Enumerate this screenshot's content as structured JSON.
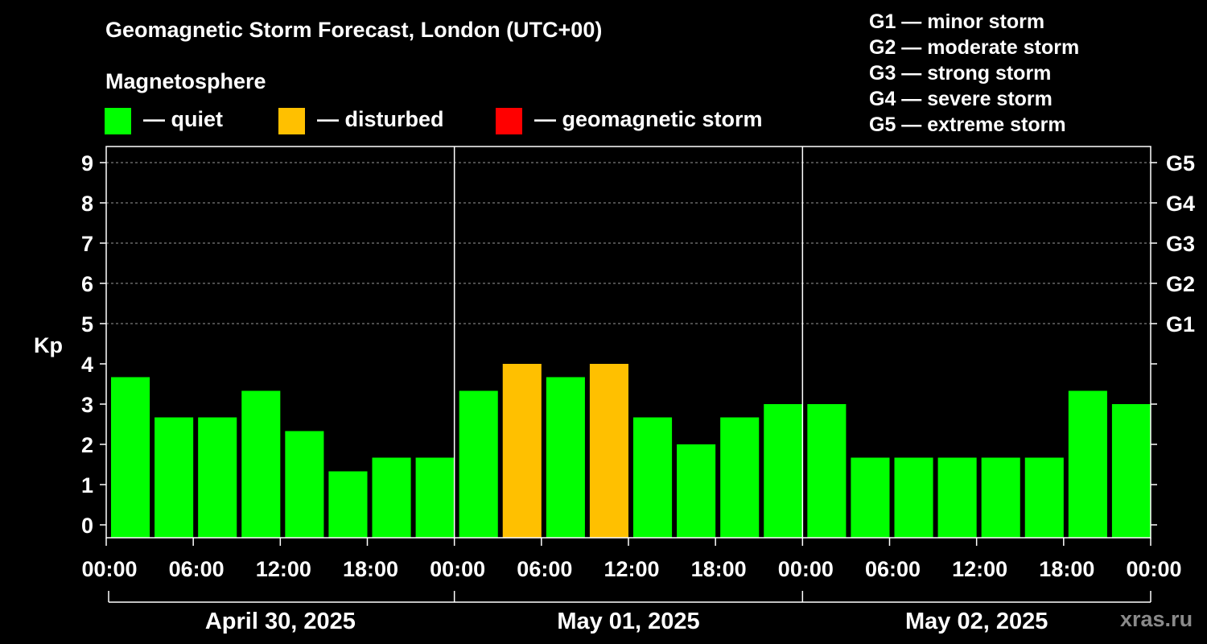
{
  "title": "Geomagnetic Storm Forecast, London (UTC+00)",
  "legend": {
    "heading": "Magnetosphere",
    "items": [
      {
        "label": "— quiet",
        "color": "#00ff00"
      },
      {
        "label": "— disturbed",
        "color": "#ffc000"
      },
      {
        "label": "— geomagnetic storm",
        "color": "#ff0000"
      }
    ]
  },
  "storm_scale": [
    "G1 — minor storm",
    "G2 — moderate storm",
    "G3 — strong storm",
    "G4 — severe storm",
    "G5 — extreme storm"
  ],
  "watermark": "xras.ru",
  "chart_data": {
    "type": "bar",
    "ylabel": "Kp",
    "ylim": [
      0,
      9
    ],
    "y_ticks": [
      "0",
      "1",
      "2",
      "3",
      "4",
      "5",
      "6",
      "7",
      "8",
      "9"
    ],
    "right_ticks": [
      {
        "kp": 5,
        "label": "G1"
      },
      {
        "kp": 6,
        "label": "G2"
      },
      {
        "kp": 7,
        "label": "G3"
      },
      {
        "kp": 8,
        "label": "G4"
      },
      {
        "kp": 9,
        "label": "G5"
      }
    ],
    "grid": "dashed horizontal at Kp 5-9",
    "x_tick_labels": [
      "00:00",
      "06:00",
      "12:00",
      "18:00",
      "00:00",
      "06:00",
      "12:00",
      "18:00",
      "00:00",
      "06:00",
      "12:00",
      "18:00",
      "00:00"
    ],
    "days": [
      "April 30, 2025",
      "May 01, 2025",
      "May 02, 2025"
    ],
    "interval_hours": 3,
    "values": [
      3.67,
      2.67,
      2.67,
      3.33,
      2.33,
      1.33,
      1.67,
      1.67,
      3.33,
      4.0,
      3.67,
      4.0,
      2.67,
      2.0,
      2.67,
      3.0,
      3.0,
      1.67,
      1.67,
      1.67,
      1.67,
      1.67,
      3.33,
      3.0
    ],
    "status": [
      "quiet",
      "quiet",
      "quiet",
      "quiet",
      "quiet",
      "quiet",
      "quiet",
      "quiet",
      "quiet",
      "disturbed",
      "quiet",
      "disturbed",
      "quiet",
      "quiet",
      "quiet",
      "quiet",
      "quiet",
      "quiet",
      "quiet",
      "quiet",
      "quiet",
      "quiet",
      "quiet",
      "quiet"
    ],
    "status_colors": {
      "quiet": "#00ff00",
      "disturbed": "#ffc000",
      "storm": "#ff0000"
    }
  }
}
